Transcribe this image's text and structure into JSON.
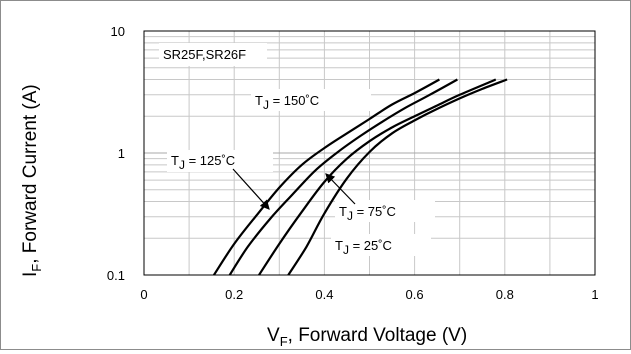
{
  "chart_data": {
    "type": "line",
    "title": "",
    "xlabel": {
      "prefix": "V",
      "sub": "F",
      "rest": ", Forward Voltage (V)"
    },
    "ylabel": {
      "prefix": "I",
      "sub": "F",
      "rest": ", Forward Current (A)"
    },
    "xlim": [
      0,
      1
    ],
    "ylim": [
      0.1,
      10
    ],
    "yscale": "log",
    "grid": true,
    "xticks": [
      "0",
      "0.2",
      "0.4",
      "0.6",
      "0.8",
      "1"
    ],
    "yticks": [
      "0.1",
      "1",
      "10"
    ],
    "legend_box": "SR25F,SR26F",
    "series": [
      {
        "name": "T_J = 150°C",
        "label_parts": [
          "T",
          "J",
          " = 150˚C"
        ],
        "color": "#000000",
        "x": [
          0.155,
          0.2,
          0.25,
          0.3,
          0.35,
          0.4,
          0.45,
          0.5,
          0.55,
          0.6,
          0.655
        ],
        "y": [
          0.1,
          0.18,
          0.31,
          0.52,
          0.8,
          1.1,
          1.45,
          1.9,
          2.5,
          3.1,
          4.0
        ]
      },
      {
        "name": "T_J = 125°C",
        "label_parts": [
          "T",
          "J",
          " = 125˚C"
        ],
        "color": "#000000",
        "x": [
          0.19,
          0.23,
          0.28,
          0.33,
          0.38,
          0.43,
          0.48,
          0.53,
          0.58,
          0.63,
          0.695
        ],
        "y": [
          0.1,
          0.17,
          0.29,
          0.46,
          0.72,
          1.02,
          1.38,
          1.82,
          2.35,
          2.95,
          4.0
        ]
      },
      {
        "name": "T_J = 75°C",
        "label_parts": [
          "T",
          "J",
          " = 75˚C"
        ],
        "color": "#000000",
        "x": [
          0.255,
          0.3,
          0.35,
          0.4,
          0.45,
          0.5,
          0.55,
          0.6,
          0.65,
          0.7,
          0.78
        ],
        "y": [
          0.1,
          0.18,
          0.33,
          0.58,
          0.9,
          1.25,
          1.62,
          2.0,
          2.45,
          3.0,
          4.0
        ]
      },
      {
        "name": "T_J = 25°C",
        "label_parts": [
          "T",
          "J",
          " = 25˚C"
        ],
        "color": "#000000",
        "x": [
          0.32,
          0.36,
          0.4,
          0.45,
          0.5,
          0.55,
          0.6,
          0.65,
          0.7,
          0.75,
          0.805
        ],
        "y": [
          0.1,
          0.17,
          0.32,
          0.62,
          1.02,
          1.45,
          1.85,
          2.3,
          2.8,
          3.35,
          4.0
        ]
      }
    ]
  }
}
